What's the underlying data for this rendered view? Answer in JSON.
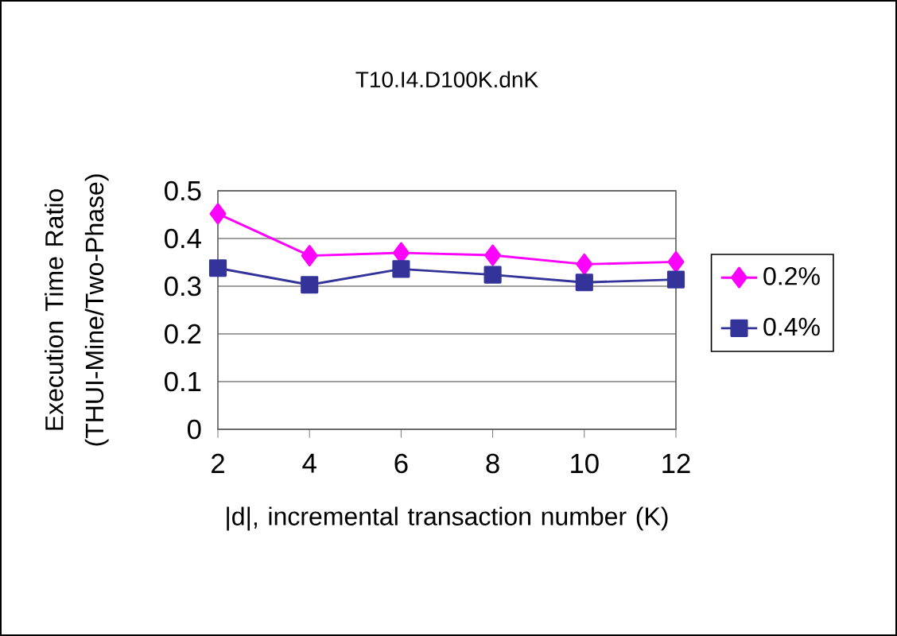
{
  "chart_data": {
    "type": "line",
    "title": "T10.I4.D100K.dnK",
    "xlabel": "|d|, incremental transaction number (K)",
    "ylabel": "Execution Time Ratio (THUI-Mine/Two-Phase)",
    "categories": [
      "2",
      "4",
      "6",
      "8",
      "10",
      "12"
    ],
    "series": [
      {
        "name": "0.2%",
        "color": "#ff00ff",
        "marker": "diamond",
        "values": [
          0.452,
          0.364,
          0.37,
          0.365,
          0.346,
          0.351
        ]
      },
      {
        "name": "0.4%",
        "color": "#333399",
        "marker": "square",
        "values": [
          0.338,
          0.303,
          0.336,
          0.324,
          0.308,
          0.314
        ]
      }
    ],
    "ylim": [
      0,
      0.5
    ],
    "yticks": [
      0,
      0.1,
      0.2,
      0.3,
      0.4,
      0.5
    ],
    "grid": "y",
    "legend": "right",
    "line_style": "solid"
  }
}
